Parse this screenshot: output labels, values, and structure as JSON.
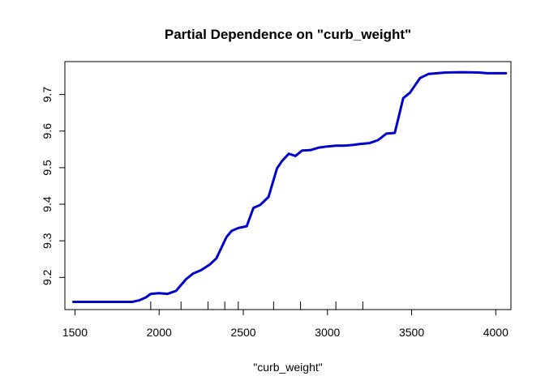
{
  "chart_data": {
    "type": "line",
    "title": "Partial Dependence on \"curb_weight\"",
    "xlabel": "\"curb_weight\"",
    "ylabel": "",
    "xlim": [
      1440,
      4090
    ],
    "ylim": [
      9.112,
      9.79
    ],
    "x_ticks": [
      1500,
      2000,
      2500,
      3000,
      3500,
      4000
    ],
    "y_ticks": [
      9.2,
      9.3,
      9.4,
      9.5,
      9.6,
      9.7
    ],
    "rug": [
      1950,
      2130,
      2290,
      2390,
      2470,
      2680,
      2840,
      3050,
      3210
    ],
    "grid": false,
    "line_color": "#0000CD",
    "series": [
      {
        "x": [
          1490,
          1840,
          1880,
          1920,
          1950,
          2000,
          2050,
          2100,
          2160,
          2200,
          2250,
          2300,
          2340,
          2400,
          2430,
          2470,
          2520,
          2560,
          2600,
          2650,
          2700,
          2730,
          2770,
          2810,
          2850,
          2900,
          2950,
          3000,
          3050,
          3100,
          3150,
          3200,
          3250,
          3300,
          3350,
          3400,
          3450,
          3490,
          3550,
          3600,
          3650,
          3700,
          3800,
          3900,
          3950,
          4060
        ],
        "y": [
          9.133,
          9.133,
          9.137,
          9.145,
          9.155,
          9.157,
          9.155,
          9.163,
          9.195,
          9.21,
          9.22,
          9.235,
          9.252,
          9.31,
          9.327,
          9.335,
          9.34,
          9.39,
          9.398,
          9.42,
          9.498,
          9.518,
          9.538,
          9.532,
          9.547,
          9.548,
          9.555,
          9.558,
          9.56,
          9.56,
          9.562,
          9.565,
          9.567,
          9.575,
          9.593,
          9.595,
          9.69,
          9.705,
          9.745,
          9.756,
          9.758,
          9.76,
          9.761,
          9.76,
          9.758,
          9.758
        ]
      }
    ]
  }
}
